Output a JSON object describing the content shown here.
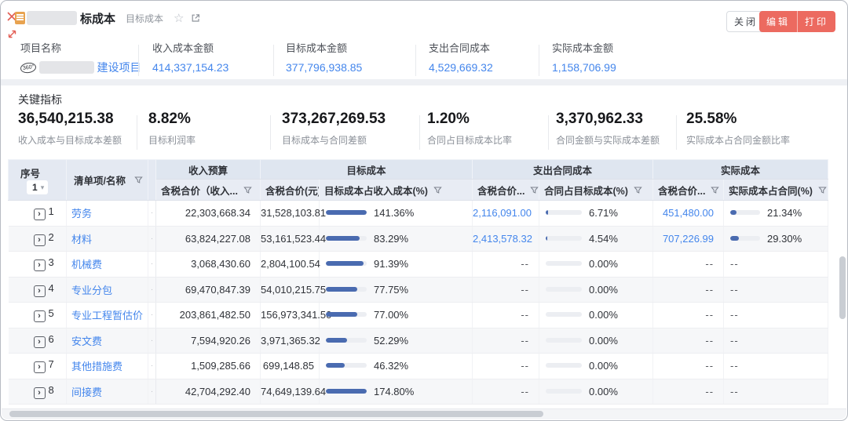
{
  "titlebar": {
    "title_suffix": "标成本",
    "subtitle": "目标成本",
    "buttons": {
      "close": "关闭",
      "edit": "编辑",
      "print": "打印"
    }
  },
  "summary": {
    "project_label": "项目名称",
    "project_badge": "360°",
    "project_name_suffix": "建设项目",
    "metrics": [
      {
        "label": "收入成本金额",
        "value": "414,337,154.23"
      },
      {
        "label": "目标成本金额",
        "value": "377,796,938.85"
      },
      {
        "label": "支出合同成本",
        "value": "4,529,669.32"
      },
      {
        "label": "实际成本金额",
        "value": "1,158,706.99"
      }
    ]
  },
  "key_indicators": {
    "title": "关键指标",
    "items": [
      {
        "value": "36,540,215.38",
        "label": "收入成本与目标成本差额"
      },
      {
        "value": "8.82%",
        "label": "目标利润率"
      },
      {
        "value": "373,267,269.53",
        "label": "目标成本与合同差额"
      },
      {
        "value": "1.20%",
        "label": "合同占目标成本比率"
      },
      {
        "value": "3,370,962.33",
        "label": "合同金额与实际成本差额"
      },
      {
        "value": "25.58%",
        "label": "实际成本占合同金额比率"
      }
    ]
  },
  "table": {
    "seq_header": "序号",
    "seq_selector": "1",
    "name_header": "清单项/名称",
    "narrow_marker": "·",
    "expand_glyph": "›",
    "groups": [
      {
        "label": "收入预算",
        "cols": [
          "含税合价（收入..."
        ]
      },
      {
        "label": "目标成本",
        "cols": [
          "含税合价(元)",
          "目标成本占收入成本(%)"
        ]
      },
      {
        "label": "支出合同成本",
        "cols": [
          "含税合价...",
          "合同占目标成本(%)"
        ]
      },
      {
        "label": "实际成本",
        "cols": [
          "含税合价...",
          "实际成本占合同(%)"
        ]
      }
    ],
    "rows": [
      {
        "seq": "1",
        "name": "劳务",
        "income": "22,303,668.34",
        "target": "31,528,103.81",
        "target_bar": 141.36,
        "target_pct": "141.36%",
        "contract": "2,116,091.00",
        "contract_bar": 6.71,
        "contract_pct": "6.71%",
        "actual": "451,480.00",
        "actual_bar": 21.34,
        "actual_pct": "21.34%"
      },
      {
        "seq": "2",
        "name": "材料",
        "income": "63,824,227.08",
        "target": "53,161,523.44",
        "target_bar": 83.29,
        "target_pct": "83.29%",
        "contract": "2,413,578.32",
        "contract_bar": 4.54,
        "contract_pct": "4.54%",
        "actual": "707,226.99",
        "actual_bar": 29.3,
        "actual_pct": "29.30%"
      },
      {
        "seq": "3",
        "name": "机械费",
        "income": "3,068,430.60",
        "target": "2,804,100.54",
        "target_bar": 91.39,
        "target_pct": "91.39%",
        "contract": "--",
        "contract_bar": 0,
        "contract_pct": "0.00%",
        "actual": "--",
        "actual_bar": null,
        "actual_pct": null
      },
      {
        "seq": "4",
        "name": "专业分包",
        "income": "69,470,847.39",
        "target": "54,010,215.75",
        "target_bar": 77.75,
        "target_pct": "77.75%",
        "contract": "--",
        "contract_bar": 0,
        "contract_pct": "0.00%",
        "actual": "--",
        "actual_bar": null,
        "actual_pct": null
      },
      {
        "seq": "5",
        "name": "专业工程暂估价",
        "income": "203,861,482.50",
        "target": "156,973,341.50",
        "target_bar": 77.0,
        "target_pct": "77.00%",
        "contract": "--",
        "contract_bar": 0,
        "contract_pct": "0.00%",
        "actual": "--",
        "actual_bar": null,
        "actual_pct": null
      },
      {
        "seq": "6",
        "name": "安文费",
        "income": "7,594,920.26",
        "target": "3,971,365.32",
        "target_bar": 52.29,
        "target_pct": "52.29%",
        "contract": "--",
        "contract_bar": 0,
        "contract_pct": "0.00%",
        "actual": "--",
        "actual_bar": null,
        "actual_pct": null
      },
      {
        "seq": "7",
        "name": "其他措施费",
        "income": "1,509,285.66",
        "target": "699,148.85",
        "target_bar": 46.32,
        "target_pct": "46.32%",
        "contract": "--",
        "contract_bar": 0,
        "contract_pct": "0.00%",
        "actual": "--",
        "actual_bar": null,
        "actual_pct": null
      },
      {
        "seq": "8",
        "name": "间接费",
        "income": "42,704,292.40",
        "target": "74,649,139.64",
        "target_bar": 174.8,
        "target_pct": "174.80%",
        "contract": "--",
        "contract_bar": 0,
        "contract_pct": "0.00%",
        "actual": "--",
        "actual_bar": null,
        "actual_pct": null
      }
    ]
  },
  "icons": {
    "star": "☆",
    "caret_down": "▾",
    "expand_row": "›",
    "narrow_dot": "·",
    "close": "x-cross",
    "resize": "diagonal-arrows",
    "filter": "funnel",
    "external_link": "box-arrow",
    "document": "orange-page",
    "badge_360": "360°"
  },
  "colors": {
    "accent_red": "#ec6a60",
    "link_blue": "#4486ec",
    "bar_blue": "#4a6bb0",
    "header_bg": "#e4e9f2"
  }
}
